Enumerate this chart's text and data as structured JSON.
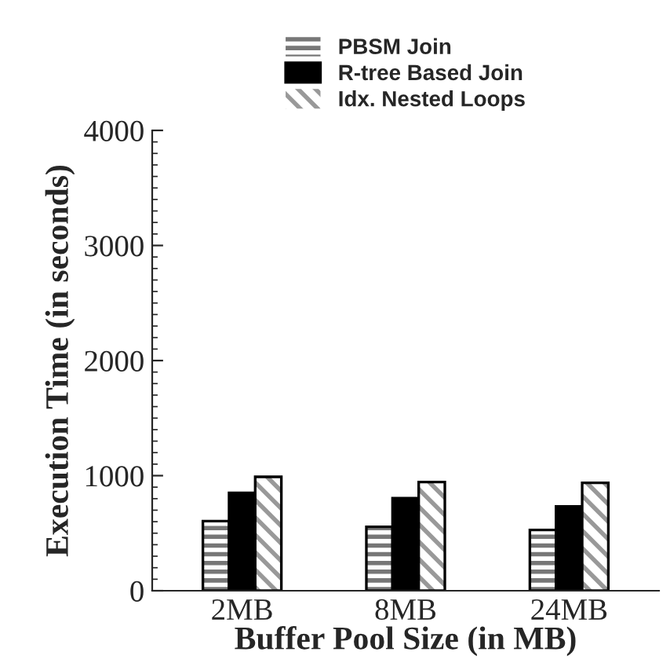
{
  "chart_data": {
    "type": "bar",
    "xlabel": "Buffer Pool Size (in MB)",
    "ylabel": "Execution Time (in seconds)",
    "categories": [
      "2MB",
      "8MB",
      "24MB"
    ],
    "series": [
      {
        "name": "PBSM Join",
        "color": "#777777",
        "values": [
          605,
          555,
          528
        ]
      },
      {
        "name": "R-tree Based Join",
        "color": "#000000",
        "values": [
          850,
          805,
          733
        ]
      },
      {
        "name": "Idx. Nested Loops",
        "color": "#999999",
        "values": [
          990,
          945,
          938
        ]
      }
    ],
    "ylim": [
      0,
      4000
    ],
    "yticks": [
      0,
      1000,
      2000,
      3000,
      4000
    ],
    "grid": false,
    "legend": "top"
  }
}
